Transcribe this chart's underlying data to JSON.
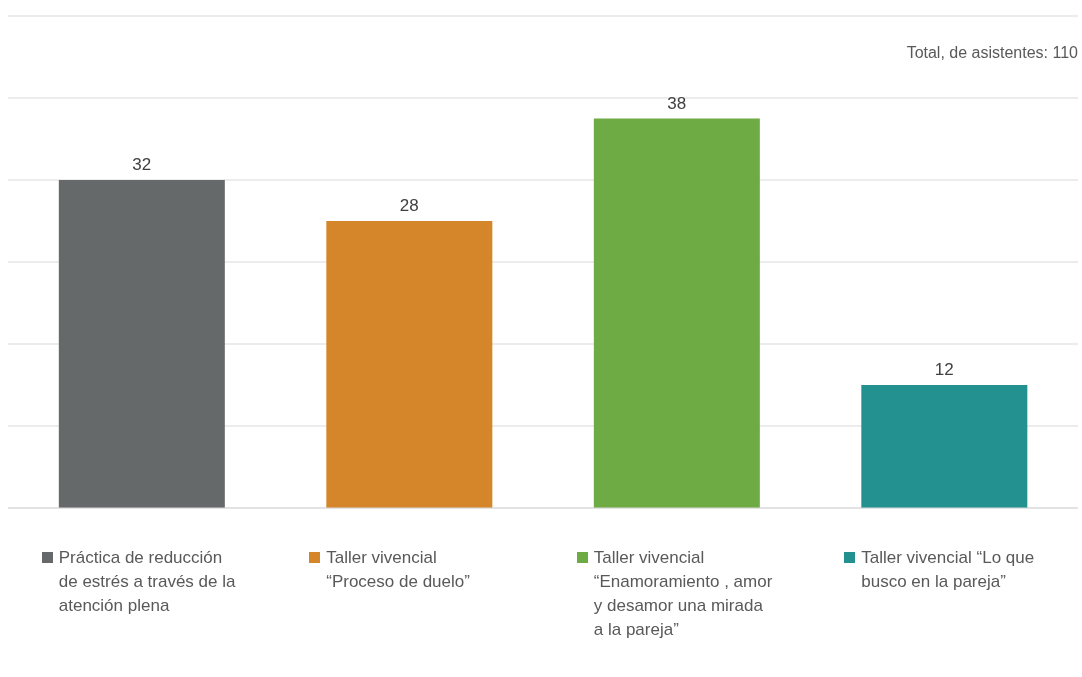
{
  "chart_data": {
    "type": "bar",
    "categories": [
      "Práctica de reducción de estrés a través de la atención plena",
      "Taller vivencial “Proceso de duelo”",
      "Taller vivencial “Enamoramiento , amor y desamor una mirada a la pareja”",
      "Taller vivencial “Lo que busco en la pareja”"
    ],
    "values": [
      32,
      28,
      38,
      12
    ],
    "colors": [
      "#65696a",
      "#d5852a",
      "#6eab45",
      "#22918f"
    ],
    "ylim": [
      0,
      48
    ],
    "yticks": [
      {
        "value": 0,
        "label": null
      },
      {
        "value": 8,
        "label": null
      },
      {
        "value": 16,
        "label": null
      },
      {
        "value": 24,
        "label": null
      },
      {
        "value": 32,
        "label": null
      },
      {
        "value": 40,
        "label": null
      },
      {
        "value": 48,
        "label": null
      }
    ],
    "tick_labels": "x",
    "grid": "y",
    "data_labels": true,
    "annotations": [
      "Total, de asistentes: 110"
    ]
  }
}
